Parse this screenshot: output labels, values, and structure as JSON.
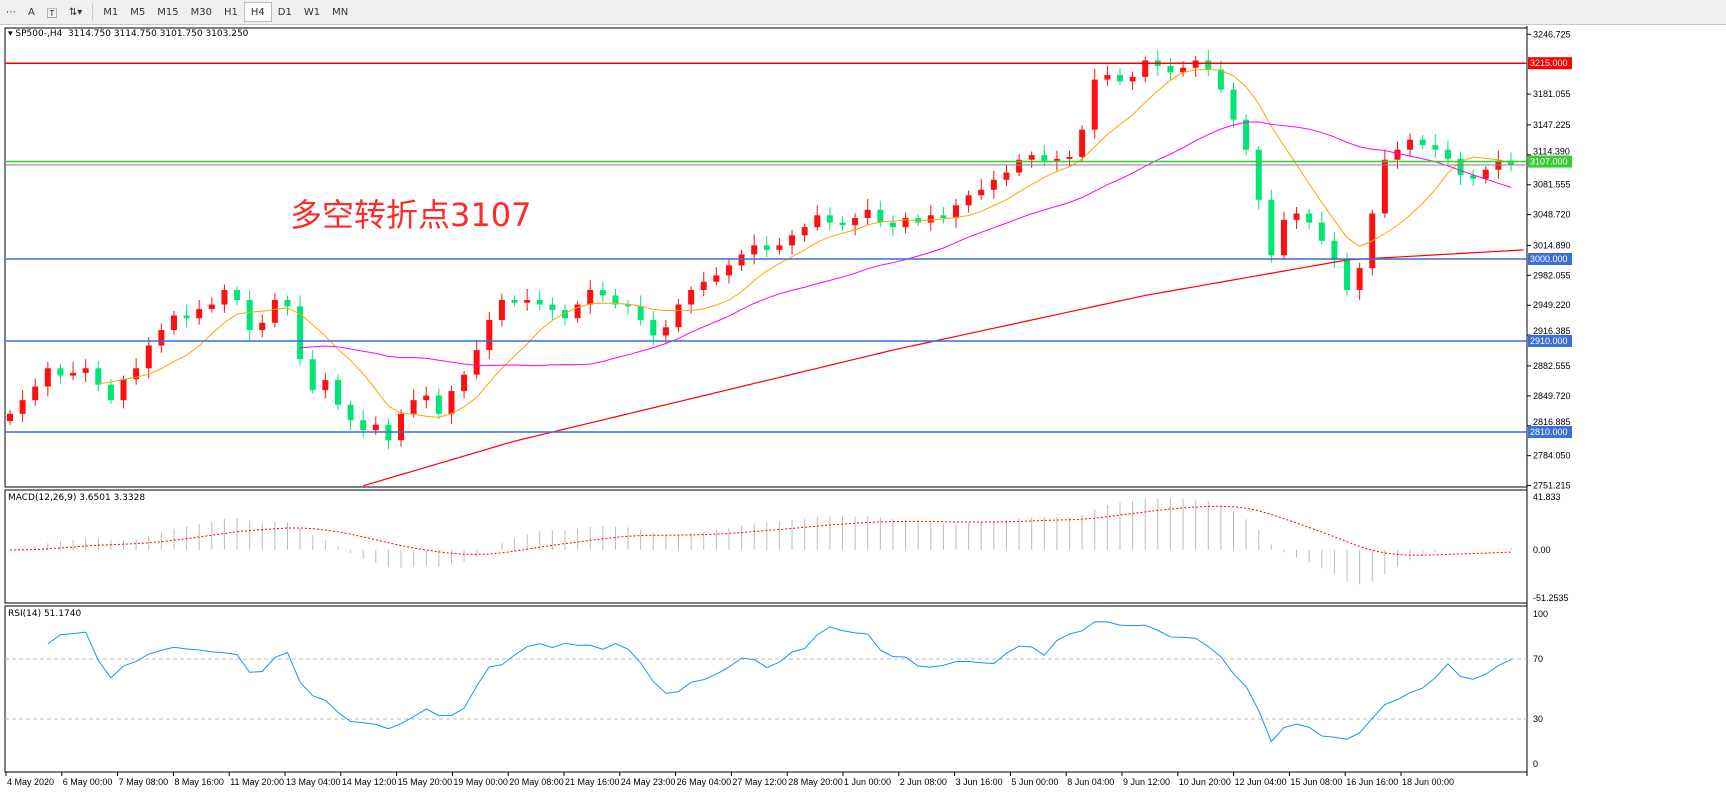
{
  "toolbar": {
    "icons": [
      "period-separator-icon",
      "text-icon",
      "text-label-icon",
      "arrows-icon"
    ],
    "timeframes": [
      "M1",
      "M5",
      "M15",
      "M30",
      "H1",
      "H4",
      "D1",
      "W1",
      "MN"
    ],
    "selected": "H4"
  },
  "header": {
    "symbol": "SP500-,H4",
    "ohlc": "3114.750 3114.750 3101.750 3103.250"
  },
  "annotation": "多空转折点3107",
  "macd": {
    "label": "MACD(12,26,9) 3.6501 3.3328",
    "ticks": [
      "41.833",
      "0.00",
      "-51.2535"
    ]
  },
  "rsi": {
    "label": "RSI(14) 51.1740",
    "ticks": [
      "100",
      "70",
      "30",
      "0"
    ]
  },
  "chart_data": {
    "type": "candlestick",
    "price_ticks": [
      "3246.725",
      "3181.055",
      "3147.225",
      "3114.390",
      "3081.555",
      "3048.720",
      "3014.890",
      "2982.055",
      "2949.220",
      "2916.385",
      "2882.555",
      "2849.720",
      "2816.885",
      "2784.050",
      "2751.215"
    ],
    "ylim": [
      2751.215,
      3246.725
    ],
    "hlines": [
      {
        "price": 3215,
        "label": "3215.000",
        "color": "#ff0000"
      },
      {
        "price": 3107,
        "label": "3107.000",
        "color": "#33cc33"
      },
      {
        "price": 3000,
        "label": "3000.000",
        "color": "#3a6fd8"
      },
      {
        "price": 2910,
        "label": "2910.000",
        "color": "#3a6fd8"
      },
      {
        "price": 2810,
        "label": "2810.000",
        "color": "#3a6fd8"
      }
    ],
    "current_price": 3103.25,
    "x_labels": [
      "4 May 2020",
      "6 May 00:00",
      "7 May 08:00",
      "8 May 16:00",
      "11 May 20:00",
      "13 May 04:00",
      "14 May 12:00",
      "15 May 20:00",
      "19 May 00:00",
      "20 May 08:00",
      "21 May 16:00",
      "24 May 23:00",
      "26 May 04:00",
      "27 May 12:00",
      "28 May 20:00",
      "1 Jun 00:00",
      "2 Jun 08:00",
      "3 Jun 16:00",
      "5 Jun 00:00",
      "8 Jun 04:00",
      "9 Jun 12:00",
      "10 Jun 20:00",
      "12 Jun 04:00",
      "15 Jun 08:00",
      "16 Jun 16:00",
      "18 Jun 00:00"
    ],
    "close": [
      2830,
      2845,
      2860,
      2880,
      2872,
      2875,
      2880,
      2862,
      2845,
      2868,
      2880,
      2905,
      2922,
      2938,
      2935,
      2945,
      2950,
      2966,
      2955,
      2922,
      2930,
      2955,
      2948,
      2890,
      2856,
      2867,
      2840,
      2823,
      2812,
      2818,
      2801,
      2830,
      2845,
      2850,
      2830,
      2855,
      2873,
      2900,
      2933,
      2955,
      2952,
      2955,
      2950,
      2944,
      2935,
      2950,
      2966,
      2960,
      2950,
      2948,
      2933,
      2916,
      2925,
      2950,
      2966,
      2975,
      2982,
      2993,
      3005,
      3015,
      3010,
      3015,
      3026,
      3035,
      3048,
      3040,
      3037,
      3045,
      3054,
      3040,
      3035,
      3045,
      3040,
      3048,
      3045,
      3059,
      3070,
      3076,
      3087,
      3095,
      3109,
      3114,
      3108,
      3110,
      3112,
      3142,
      3197,
      3202,
      3195,
      3200,
      3218,
      3212,
      3205,
      3210,
      3218,
      3208,
      3186,
      3153,
      3120,
      3065,
      3004,
      3043,
      3050,
      3040,
      3020,
      2999,
      2966,
      2990,
      3050,
      3109,
      3120,
      3131,
      3125,
      3120,
      3110,
      3092,
      3088,
      3098,
      3108,
      3103.25
    ],
    "ma_red_points": [
      [
        28,
        2751
      ],
      [
        40,
        2800
      ],
      [
        55,
        2850
      ],
      [
        70,
        2900
      ],
      [
        90,
        2960
      ],
      [
        106,
        2999
      ],
      [
        120,
        3010
      ]
    ]
  }
}
